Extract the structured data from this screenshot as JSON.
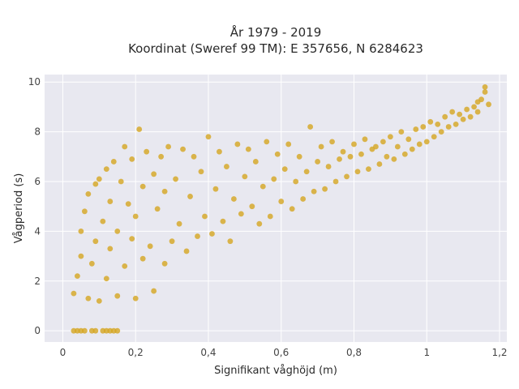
{
  "chart_data": {
    "type": "scatter",
    "title": "År 1979 - 2019",
    "subtitle": "Koordinat (Sweref 99 TM): E 357656, N 6284623",
    "xlabel": "Signifikant våghöjd (m)",
    "ylabel": "Vågperiod (s)",
    "xlim": [
      -0.05,
      1.22
    ],
    "ylim": [
      -0.45,
      10.3
    ],
    "x_tick_labels": [
      "0",
      "0,2",
      "0,4",
      "0,6",
      "0,8",
      "1",
      "1,2"
    ],
    "y_tick_labels": [
      "0",
      "2",
      "4",
      "6",
      "8",
      "10"
    ],
    "grid": true,
    "legend": "none",
    "marker_color": "#d4a521",
    "plot_background": "#e8e8f0",
    "series": [
      {
        "points": [
          [
            0.03,
            1.5
          ],
          [
            0.04,
            2.2
          ],
          [
            0.05,
            3.0
          ],
          [
            0.05,
            4.0
          ],
          [
            0.06,
            4.8
          ],
          [
            0.07,
            5.5
          ],
          [
            0.07,
            1.3
          ],
          [
            0.08,
            2.7
          ],
          [
            0.09,
            3.6
          ],
          [
            0.09,
            5.9
          ],
          [
            0.1,
            6.1
          ],
          [
            0.1,
            1.2
          ],
          [
            0.11,
            4.4
          ],
          [
            0.12,
            2.1
          ],
          [
            0.12,
            6.5
          ],
          [
            0.13,
            3.3
          ],
          [
            0.13,
            5.2
          ],
          [
            0.14,
            6.8
          ],
          [
            0.15,
            1.4
          ],
          [
            0.15,
            4.0
          ],
          [
            0.16,
            6.0
          ],
          [
            0.17,
            2.6
          ],
          [
            0.17,
            7.4
          ],
          [
            0.18,
            5.1
          ],
          [
            0.19,
            3.7
          ],
          [
            0.19,
            6.9
          ],
          [
            0.2,
            1.3
          ],
          [
            0.2,
            4.6
          ],
          [
            0.21,
            8.1
          ],
          [
            0.22,
            2.9
          ],
          [
            0.22,
            5.8
          ],
          [
            0.23,
            7.2
          ],
          [
            0.24,
            3.4
          ],
          [
            0.25,
            6.3
          ],
          [
            0.25,
            1.6
          ],
          [
            0.26,
            4.9
          ],
          [
            0.27,
            7.0
          ],
          [
            0.28,
            2.7
          ],
          [
            0.28,
            5.6
          ],
          [
            0.29,
            7.4
          ],
          [
            0.3,
            3.6
          ],
          [
            0.31,
            6.1
          ],
          [
            0.32,
            4.3
          ],
          [
            0.33,
            7.3
          ],
          [
            0.34,
            3.2
          ],
          [
            0.35,
            5.4
          ],
          [
            0.36,
            7.0
          ],
          [
            0.37,
            3.8
          ],
          [
            0.38,
            6.4
          ],
          [
            0.39,
            4.6
          ],
          [
            0.4,
            7.8
          ],
          [
            0.41,
            3.9
          ],
          [
            0.42,
            5.7
          ],
          [
            0.43,
            7.2
          ],
          [
            0.44,
            4.4
          ],
          [
            0.45,
            6.6
          ],
          [
            0.46,
            3.6
          ],
          [
            0.47,
            5.3
          ],
          [
            0.48,
            7.5
          ],
          [
            0.49,
            4.7
          ],
          [
            0.5,
            6.2
          ],
          [
            0.51,
            7.3
          ],
          [
            0.52,
            5.0
          ],
          [
            0.53,
            6.8
          ],
          [
            0.54,
            4.3
          ],
          [
            0.55,
            5.8
          ],
          [
            0.56,
            7.6
          ],
          [
            0.57,
            4.6
          ],
          [
            0.58,
            6.1
          ],
          [
            0.59,
            7.1
          ],
          [
            0.6,
            5.2
          ],
          [
            0.61,
            6.5
          ],
          [
            0.62,
            7.5
          ],
          [
            0.63,
            4.9
          ],
          [
            0.64,
            6.0
          ],
          [
            0.65,
            7.0
          ],
          [
            0.66,
            5.3
          ],
          [
            0.67,
            6.4
          ],
          [
            0.68,
            8.2
          ],
          [
            0.69,
            5.6
          ],
          [
            0.7,
            6.8
          ],
          [
            0.71,
            7.4
          ],
          [
            0.72,
            5.7
          ],
          [
            0.73,
            6.6
          ],
          [
            0.74,
            7.6
          ],
          [
            0.75,
            6.0
          ],
          [
            0.76,
            6.9
          ],
          [
            0.77,
            7.2
          ],
          [
            0.78,
            6.2
          ],
          [
            0.79,
            7.0
          ],
          [
            0.8,
            7.5
          ],
          [
            0.81,
            6.4
          ],
          [
            0.82,
            7.1
          ],
          [
            0.83,
            7.7
          ],
          [
            0.84,
            6.5
          ],
          [
            0.85,
            7.3
          ],
          [
            0.86,
            7.4
          ],
          [
            0.87,
            6.7
          ],
          [
            0.88,
            7.6
          ],
          [
            0.89,
            7.0
          ],
          [
            0.9,
            7.8
          ],
          [
            0.91,
            6.9
          ],
          [
            0.92,
            7.4
          ],
          [
            0.93,
            8.0
          ],
          [
            0.94,
            7.1
          ],
          [
            0.95,
            7.7
          ],
          [
            0.96,
            7.3
          ],
          [
            0.97,
            8.1
          ],
          [
            0.98,
            7.5
          ],
          [
            0.99,
            8.2
          ],
          [
            1.0,
            7.6
          ],
          [
            1.01,
            8.4
          ],
          [
            1.02,
            7.8
          ],
          [
            1.03,
            8.3
          ],
          [
            1.04,
            8.0
          ],
          [
            1.05,
            8.6
          ],
          [
            1.06,
            8.2
          ],
          [
            1.07,
            8.8
          ],
          [
            1.08,
            8.3
          ],
          [
            1.09,
            8.7
          ],
          [
            1.1,
            8.5
          ],
          [
            1.11,
            8.9
          ],
          [
            1.12,
            8.6
          ],
          [
            1.13,
            9.0
          ],
          [
            1.14,
            8.8
          ],
          [
            1.15,
            9.3
          ],
          [
            1.16,
            9.8
          ],
          [
            1.17,
            9.1
          ],
          [
            1.16,
            9.6
          ],
          [
            1.14,
            9.2
          ],
          [
            0.03,
            0.0
          ],
          [
            0.04,
            0.0
          ],
          [
            0.05,
            0.0
          ],
          [
            0.06,
            0.0
          ],
          [
            0.08,
            0.0
          ],
          [
            0.09,
            0.0
          ],
          [
            0.11,
            0.0
          ],
          [
            0.12,
            0.0
          ],
          [
            0.13,
            0.0
          ],
          [
            0.14,
            0.0
          ],
          [
            0.15,
            0.0
          ]
        ]
      }
    ]
  }
}
